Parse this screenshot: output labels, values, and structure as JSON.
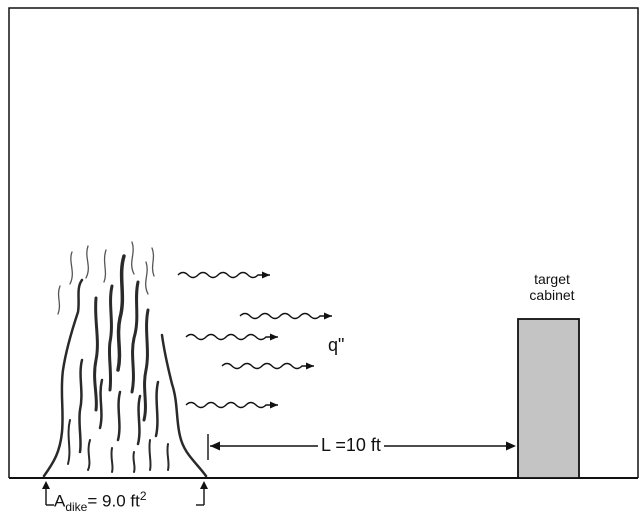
{
  "labels": {
    "target_line1": "target",
    "target_line2": "cabinet",
    "heat_flux": "q\"",
    "distance": "L =10 ft",
    "area_symbol": "A",
    "area_subscript": "dike",
    "area_value": "= 9.0 ft",
    "area_exponent": "2"
  },
  "colors": {
    "line": "#111111",
    "cabinet_fill": "#c4c4c4",
    "fire": "#2a2a2a"
  }
}
